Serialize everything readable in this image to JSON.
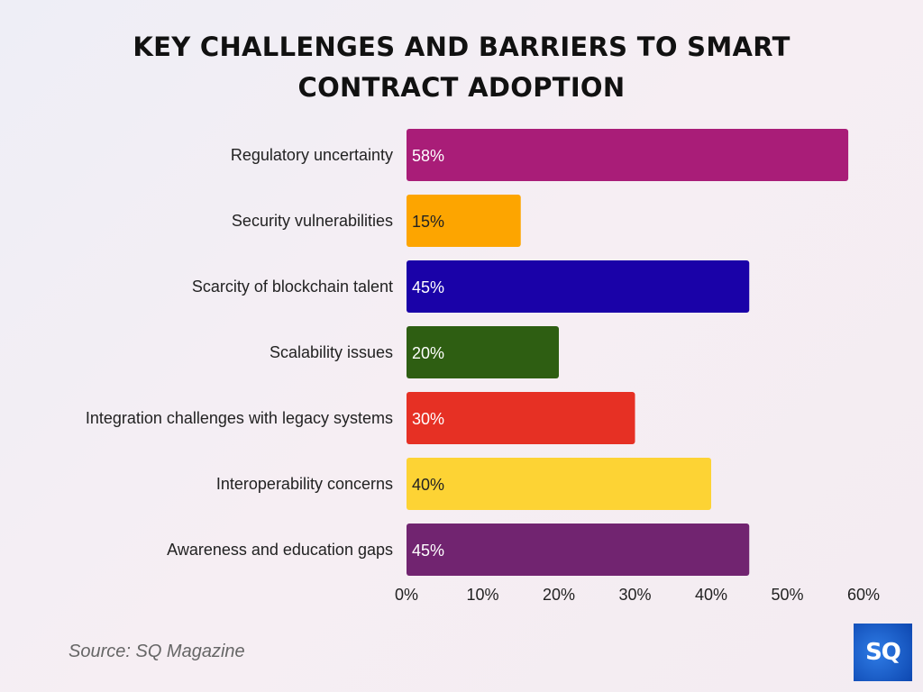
{
  "chart_data": {
    "type": "bar",
    "orientation": "horizontal",
    "title": "KEY CHALLENGES AND BARRIERS TO SMART CONTRACT ADOPTION",
    "categories": [
      "Regulatory uncertainty",
      "Security vulnerabilities",
      "Scarcity of blockchain talent",
      "Scalability issues",
      "Integration challenges with legacy systems",
      "Interoperability concerns",
      "Awareness and education gaps"
    ],
    "values": [
      58,
      15,
      45,
      20,
      30,
      40,
      45
    ],
    "data_labels": [
      "58%",
      "15%",
      "45%",
      "20%",
      "30%",
      "40%",
      "45%"
    ],
    "colors": [
      "#a91d78",
      "#fda500",
      "#1a02a8",
      "#2e5e12",
      "#e63024",
      "#fdd334",
      "#712470"
    ],
    "label_colors": [
      "#ffffff",
      "#222222",
      "#ffffff",
      "#ffffff",
      "#ffffff",
      "#222222",
      "#ffffff"
    ],
    "xlim": [
      0,
      60
    ],
    "xticks": [
      "0%",
      "10%",
      "20%",
      "30%",
      "40%",
      "50%",
      "60%"
    ],
    "grid": false,
    "xlabel": "",
    "ylabel": ""
  },
  "source": "Source: SQ Magazine",
  "logo": "SQ"
}
